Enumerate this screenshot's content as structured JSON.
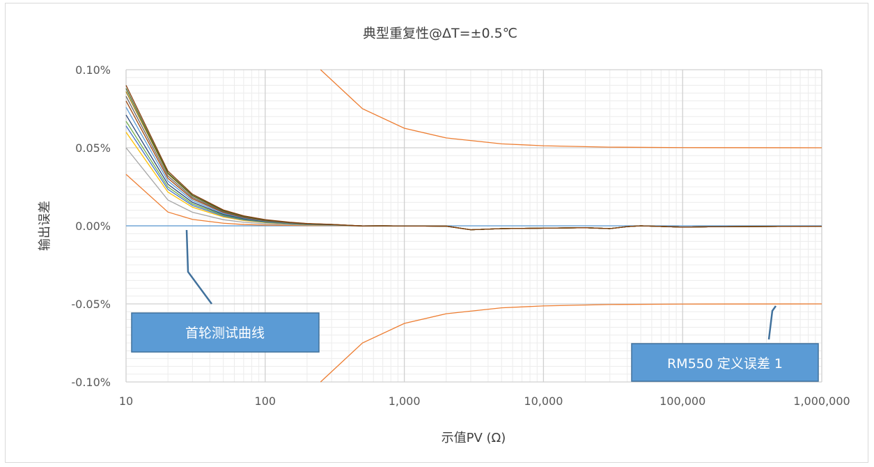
{
  "chart_data": {
    "type": "line",
    "title": "典型重复性@ΔT=±0.5℃",
    "xlabel": "示值PV (Ω)",
    "ylabel": "输出误差",
    "x_scale": "log",
    "xlim": [
      10,
      1000000
    ],
    "ylim": [
      -0.1,
      0.1
    ],
    "x_tick_labels": [
      "10",
      "100",
      "1,000",
      "10,000",
      "100,000",
      "1,000,000"
    ],
    "y_tick_labels": [
      "0.10%",
      "0.05%",
      "0.00%",
      "-0.05%",
      "-0.10%"
    ],
    "y_unit": "%",
    "grid": true,
    "spec_limit": {
      "color": "#ed7d31",
      "upper": {
        "x": [
          250,
          500,
          1000,
          2000,
          5000,
          10000,
          30000,
          100000,
          1000000
        ],
        "y": [
          0.1,
          0.075,
          0.0625,
          0.0563,
          0.0525,
          0.0513,
          0.0504,
          0.0501,
          0.05
        ]
      },
      "lower": {
        "x": [
          250,
          500,
          1000,
          2000,
          5000,
          10000,
          30000,
          100000,
          1000000
        ],
        "y": [
          -0.1,
          -0.075,
          -0.0625,
          -0.0563,
          -0.0525,
          -0.0513,
          -0.0504,
          -0.0501,
          -0.05
        ]
      }
    },
    "zero_line": {
      "color": "#5b9bd5",
      "y": 0
    },
    "test_curves": {
      "x": [
        10,
        20,
        30,
        50,
        70,
        100,
        150,
        200,
        300,
        500,
        700,
        1000,
        2000,
        3000,
        5000,
        10000,
        20000,
        30000,
        40000,
        50000,
        100000,
        200000,
        500000,
        1000000
      ],
      "offset": [
        0,
        0.0002,
        0.0002,
        0.0002,
        0.0001,
        0.0001,
        0.0001,
        0,
        0.0001,
        -0.0001,
        0,
        -0.0001,
        -0.0002,
        -0.0025,
        -0.0018,
        -0.0015,
        -0.0012,
        -0.0018,
        -0.0005,
        0,
        -0.0008,
        -0.0005,
        -0.0004,
        -0.0003
      ],
      "series": [
        {
          "color": "#ed7d31",
          "start": 0.033,
          "tail": 0.0001
        },
        {
          "color": "#a5a5a5",
          "start": 0.05,
          "tail": 0.0004
        },
        {
          "color": "#ffc000",
          "start": 0.06,
          "tail": 0.0007
        },
        {
          "color": "#4472c4",
          "start": 0.064,
          "tail": 0.0008
        },
        {
          "color": "#70ad47",
          "start": 0.067,
          "tail": 0.0009
        },
        {
          "color": "#264478",
          "start": 0.071,
          "tail": 0.001
        },
        {
          "color": "#5b9bd5",
          "start": 0.076,
          "tail": 0.0011
        },
        {
          "color": "#9e480e",
          "start": 0.08,
          "tail": 0.0012
        },
        {
          "color": "#636363",
          "start": 0.083,
          "tail": 0.0013
        },
        {
          "color": "#997300",
          "start": 0.086,
          "tail": 0.0014
        },
        {
          "color": "#43682b",
          "start": 0.088,
          "tail": 0.0014
        },
        {
          "color": "#843c0c",
          "start": 0.09,
          "tail": 0.0015
        }
      ]
    },
    "callouts": [
      {
        "text": "首轮测试曲线",
        "color": "#5b9bd5",
        "border": "#41719c"
      },
      {
        "text": "RM550 定义误差 1",
        "color": "#5b9bd5",
        "border": "#41719c"
      }
    ]
  }
}
